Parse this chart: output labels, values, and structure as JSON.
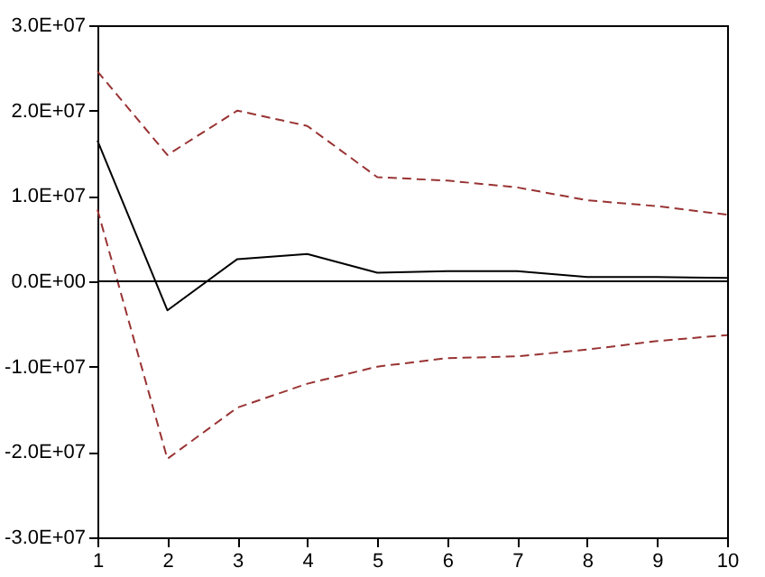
{
  "chart_data": {
    "type": "line",
    "x": [
      1,
      2,
      3,
      4,
      5,
      6,
      7,
      8,
      9,
      10
    ],
    "series": [
      {
        "color": "#000000",
        "line_style": "solid",
        "values": [
          16500000,
          -3400000,
          2600000,
          3200000,
          1000000,
          1200000,
          1200000,
          500000,
          500000,
          400000
        ]
      },
      {
        "color": "#993333",
        "line_style": "dashed",
        "values": [
          24600000,
          14800000,
          20000000,
          18200000,
          12200000,
          11800000,
          11000000,
          9500000,
          8800000,
          7800000
        ]
      },
      {
        "color": "#993333",
        "line_style": "dashed",
        "values": [
          8400000,
          -20800000,
          -14800000,
          -12000000,
          -10000000,
          -9000000,
          -8800000,
          -8000000,
          -7000000,
          -6300000
        ]
      }
    ],
    "xlim": [
      1,
      10
    ],
    "xticks": [
      1,
      2,
      3,
      4,
      5,
      6,
      7,
      8,
      9,
      10
    ],
    "ylim": [
      -30000000,
      30000000
    ],
    "yticks": [
      {
        "value": -30000000,
        "label": "-3.0E+07"
      },
      {
        "value": -20000000,
        "label": "-2.0E+07"
      },
      {
        "value": -10000000,
        "label": "-1.0E+07"
      },
      {
        "value": 0,
        "label": "0.0E+00"
      },
      {
        "value": 10000000,
        "label": "1.0E+07"
      },
      {
        "value": 20000000,
        "label": "2.0E+07"
      },
      {
        "value": 30000000,
        "label": "3.0E+07"
      }
    ],
    "ref_lines": [
      {
        "axis": "y",
        "value": 0,
        "color": "#000000"
      }
    ],
    "grid": false,
    "marker": "none"
  }
}
